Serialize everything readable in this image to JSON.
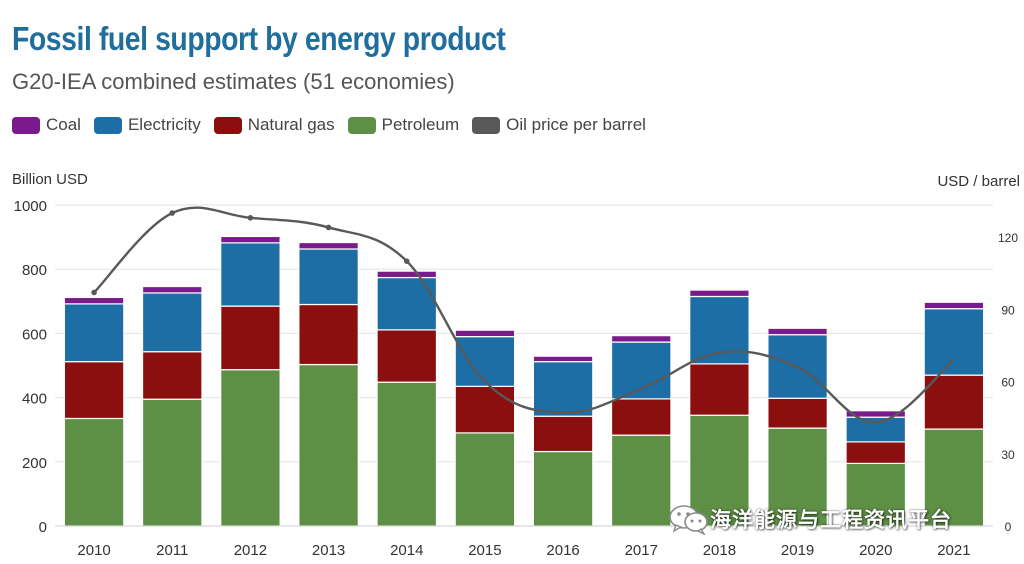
{
  "chart_data": {
    "type": "bar",
    "title": "Fossil fuel support by energy product",
    "subtitle": "G20-IEA combined estimates (51 economies)",
    "ylabel": "Billion USD",
    "y2label": "USD / barrel",
    "ylim": [
      0,
      1000
    ],
    "y2lim": [
      0,
      133.33
    ],
    "yticks": [
      0,
      200,
      400,
      600,
      800,
      1000
    ],
    "y2ticks": [
      0,
      30,
      60,
      90,
      120
    ],
    "grid": true,
    "legend": "top-left",
    "categories": [
      "2010",
      "2011",
      "2012",
      "2013",
      "2014",
      "2015",
      "2016",
      "2017",
      "2018",
      "2019",
      "2020",
      "2021"
    ],
    "series": [
      {
        "name": "Petroleum",
        "color": "#5d8f45",
        "values": [
          335,
          395,
          487,
          503,
          448,
          290,
          232,
          283,
          345,
          305,
          195,
          302
        ]
      },
      {
        "name": "Natural gas",
        "color": "#8b0f0f",
        "values": [
          177,
          148,
          198,
          187,
          163,
          145,
          110,
          113,
          160,
          93,
          67,
          168
        ]
      },
      {
        "name": "Electricity",
        "color": "#1c6ea4",
        "values": [
          180,
          183,
          197,
          173,
          163,
          155,
          170,
          177,
          210,
          198,
          77,
          207
        ]
      },
      {
        "name": "Coal",
        "color": "#7a1a8c",
        "values": [
          20,
          20,
          20,
          20,
          20,
          20,
          17,
          20,
          20,
          20,
          20,
          20
        ]
      }
    ],
    "line": {
      "name": "Oil price per barrel",
      "color": "#595959",
      "axis": "right",
      "values": [
        97,
        130,
        128,
        124,
        110,
        60,
        47,
        57,
        72,
        66,
        43,
        69
      ]
    }
  },
  "legend_items": [
    {
      "label": "Coal",
      "color": "#7a1a8c"
    },
    {
      "label": "Electricity",
      "color": "#1c6ea4"
    },
    {
      "label": "Natural gas",
      "color": "#8b0f0f"
    },
    {
      "label": "Petroleum",
      "color": "#5d8f45"
    },
    {
      "label": "Oil price per barrel",
      "color": "#595959"
    }
  ],
  "watermark": {
    "text": "海洋能源与工程资讯平台",
    "icon": "wechat-icon"
  }
}
